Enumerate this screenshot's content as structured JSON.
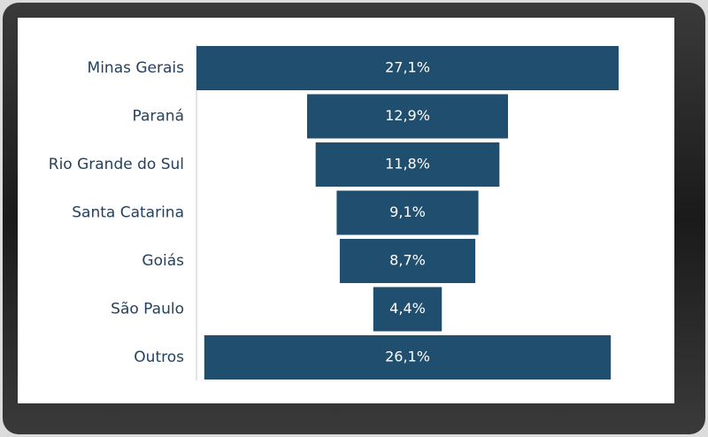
{
  "chart_data": {
    "type": "funnel",
    "categories": [
      "Minas Gerais",
      "Paraná",
      "Rio Grande do Sul",
      "Santa Catarina",
      "Goiás",
      "São Paulo",
      "Outros"
    ],
    "values": [
      27.1,
      12.9,
      11.8,
      9.1,
      8.7,
      4.4,
      26.1
    ],
    "value_labels": [
      "27,1%",
      "12,9%",
      "11,8%",
      "9,1%",
      "8,7%",
      "4,4%",
      "26,1%"
    ],
    "color": "#1f4e6e"
  }
}
